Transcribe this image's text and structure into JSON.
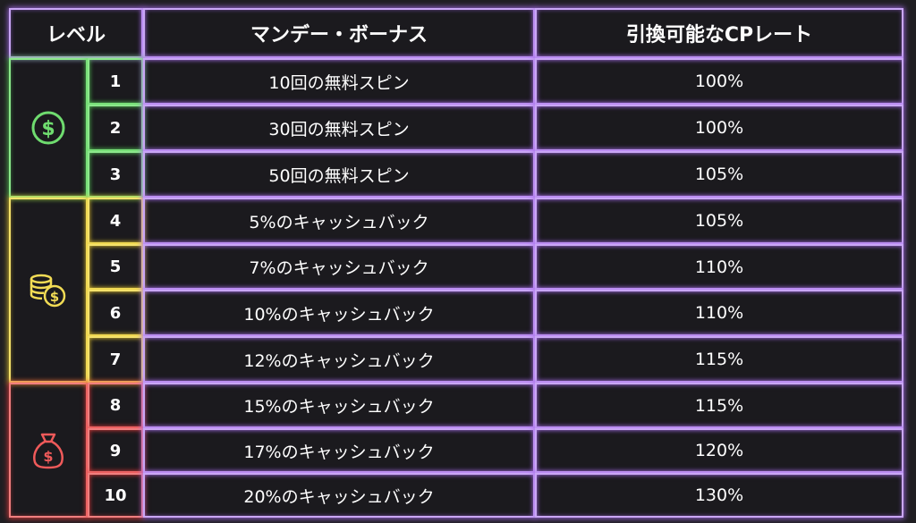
{
  "header": {
    "level": "レベル",
    "bonus": "マンデー・ボーナス",
    "rate": "引換可能なCPレート"
  },
  "groups": [
    {
      "icon": "dollar-coin-icon",
      "color": "#6fdc6f"
    },
    {
      "icon": "coin-stack-icon",
      "color": "#f2dc55"
    },
    {
      "icon": "money-bag-icon",
      "color": "#f05a5a"
    }
  ],
  "rows": [
    {
      "level": "1",
      "bonus": "10回の無料スピン",
      "rate": "100%"
    },
    {
      "level": "2",
      "bonus": "30回の無料スピン",
      "rate": "100%"
    },
    {
      "level": "3",
      "bonus": "50回の無料スピン",
      "rate": "105%"
    },
    {
      "level": "4",
      "bonus": "5%のキャッシュバック",
      "rate": "105%"
    },
    {
      "level": "5",
      "bonus": "7%のキャッシュバック",
      "rate": "110%"
    },
    {
      "level": "6",
      "bonus": "10%のキャッシュバック",
      "rate": "110%"
    },
    {
      "level": "7",
      "bonus": "12%のキャッシュバック",
      "rate": "115%"
    },
    {
      "level": "8",
      "bonus": "15%のキャッシュバック",
      "rate": "115%"
    },
    {
      "level": "9",
      "bonus": "17%のキャッシュバック",
      "rate": "120%"
    },
    {
      "level": "10",
      "bonus": "20%のキャッシュバック",
      "rate": "130%"
    }
  ]
}
